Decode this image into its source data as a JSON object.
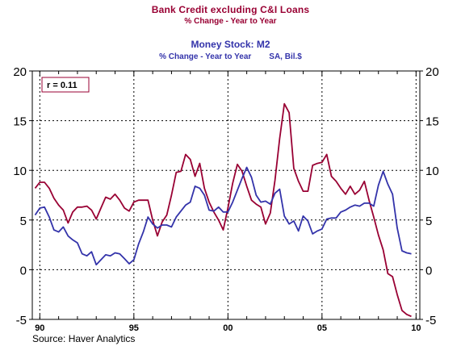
{
  "titles": {
    "main": "Bank Credit excluding C&I Loans",
    "main_sub": "% Change - Year to Year",
    "second": "Money Stock: M2",
    "second_sub_left": "% Change - Year to Year",
    "second_sub_right": "SA, Bil.$"
  },
  "source": "Source: Haver Analytics",
  "colors": {
    "bank_credit": "#990033",
    "money_stock": "#3333aa",
    "grid": "#000000",
    "background": "#ffffff"
  },
  "chart_data": {
    "type": "line",
    "title": "Bank Credit excluding C&I Loans",
    "ylim": [
      -5,
      20
    ],
    "yticks": [
      -5,
      0,
      5,
      10,
      15,
      20
    ],
    "ytick_labels": [
      "-5",
      "0",
      "5",
      "10",
      "15",
      "20"
    ],
    "xlim": [
      1989.6,
      2010.2
    ],
    "xticks": [
      1990,
      1995,
      2000,
      2005,
      2010
    ],
    "xtick_labels": [
      "90",
      "95",
      "00",
      "05",
      "10"
    ],
    "grid": true,
    "annotation": "r = 0.11",
    "series": [
      {
        "name": "Bank Credit excluding C&I Loans",
        "color": "#990033",
        "x": [
          1989.75,
          1990.0,
          1990.25,
          1990.5,
          1990.75,
          1991.0,
          1991.25,
          1991.5,
          1991.75,
          1992.0,
          1992.25,
          1992.5,
          1992.75,
          1993.0,
          1993.25,
          1993.5,
          1993.75,
          1994.0,
          1994.25,
          1994.5,
          1994.75,
          1995.0,
          1995.25,
          1995.5,
          1995.75,
          1996.0,
          1996.25,
          1996.5,
          1996.75,
          1997.0,
          1997.25,
          1997.5,
          1997.75,
          1998.0,
          1998.25,
          1998.5,
          1998.75,
          1999.0,
          1999.25,
          1999.5,
          1999.75,
          2000.0,
          2000.25,
          2000.5,
          2000.75,
          2001.0,
          2001.25,
          2001.5,
          2001.75,
          2002.0,
          2002.25,
          2002.5,
          2002.75,
          2003.0,
          2003.25,
          2003.5,
          2003.75,
          2004.0,
          2004.25,
          2004.5,
          2004.75,
          2005.0,
          2005.25,
          2005.5,
          2005.75,
          2006.0,
          2006.25,
          2006.5,
          2006.75,
          2007.0,
          2007.25,
          2007.5,
          2007.75,
          2008.0,
          2008.25,
          2008.5,
          2008.75,
          2009.0,
          2009.25,
          2009.5,
          2009.75
        ],
        "values": [
          8.2,
          8.8,
          8.8,
          8.2,
          7.2,
          6.5,
          6.0,
          4.7,
          5.8,
          6.3,
          6.3,
          6.4,
          6.0,
          5.1,
          6.2,
          7.3,
          7.1,
          7.6,
          7.0,
          6.2,
          5.9,
          6.8,
          7.0,
          7.0,
          7.0,
          5.0,
          3.4,
          4.8,
          5.5,
          7.5,
          9.8,
          9.9,
          11.6,
          11.1,
          9.4,
          10.7,
          8.2,
          6.8,
          5.8,
          5.0,
          4.0,
          6.2,
          8.7,
          10.6,
          9.9,
          8.4,
          7.0,
          6.6,
          6.3,
          4.6,
          5.7,
          9.0,
          13.2,
          16.7,
          15.8,
          10.2,
          8.9,
          7.9,
          7.9,
          10.5,
          10.7,
          10.8,
          11.6,
          9.4,
          8.9,
          8.2,
          7.6,
          8.4,
          7.6,
          8.0,
          8.9,
          7.0,
          5.3,
          3.5,
          2.0,
          -0.4,
          -0.7,
          -2.5,
          -4.1,
          -4.5,
          -4.7
        ]
      },
      {
        "name": "Money Stock: M2",
        "color": "#3333aa",
        "x": [
          1989.75,
          1990.0,
          1990.25,
          1990.5,
          1990.75,
          1991.0,
          1991.25,
          1991.5,
          1991.75,
          1992.0,
          1992.25,
          1992.5,
          1992.75,
          1993.0,
          1993.25,
          1993.5,
          1993.75,
          1994.0,
          1994.25,
          1994.5,
          1994.75,
          1995.0,
          1995.25,
          1995.5,
          1995.75,
          1996.0,
          1996.25,
          1996.5,
          1996.75,
          1997.0,
          1997.25,
          1997.5,
          1997.75,
          1998.0,
          1998.25,
          1998.5,
          1998.75,
          1999.0,
          1999.25,
          1999.5,
          1999.75,
          2000.0,
          2000.25,
          2000.5,
          2000.75,
          2001.0,
          2001.25,
          2001.5,
          2001.75,
          2002.0,
          2002.25,
          2002.5,
          2002.75,
          2003.0,
          2003.25,
          2003.5,
          2003.75,
          2004.0,
          2004.25,
          2004.5,
          2004.75,
          2005.0,
          2005.25,
          2005.5,
          2005.75,
          2006.0,
          2006.25,
          2006.5,
          2006.75,
          2007.0,
          2007.25,
          2007.5,
          2007.75,
          2008.0,
          2008.25,
          2008.5,
          2008.75,
          2009.0,
          2009.25,
          2009.5,
          2009.75
        ],
        "values": [
          5.5,
          6.2,
          6.3,
          5.3,
          4.0,
          3.8,
          4.3,
          3.4,
          3.0,
          2.7,
          1.6,
          1.4,
          1.8,
          0.5,
          1.0,
          1.5,
          1.4,
          1.7,
          1.6,
          1.1,
          0.6,
          1.0,
          2.6,
          3.8,
          5.3,
          4.6,
          4.2,
          4.5,
          4.5,
          4.3,
          5.3,
          5.9,
          6.5,
          6.8,
          8.4,
          8.2,
          7.5,
          6.0,
          5.9,
          6.3,
          5.8,
          5.8,
          6.8,
          8.0,
          9.2,
          10.3,
          9.3,
          7.5,
          6.8,
          6.9,
          6.6,
          7.7,
          8.1,
          5.4,
          4.6,
          4.9,
          3.9,
          5.4,
          4.9,
          3.6,
          3.9,
          4.1,
          5.1,
          5.2,
          5.2,
          5.8,
          6.0,
          6.3,
          6.5,
          6.4,
          6.7,
          6.7,
          6.4,
          8.5,
          9.9,
          8.6,
          7.6,
          4.2,
          1.9,
          1.7,
          1.6
        ]
      }
    ]
  }
}
